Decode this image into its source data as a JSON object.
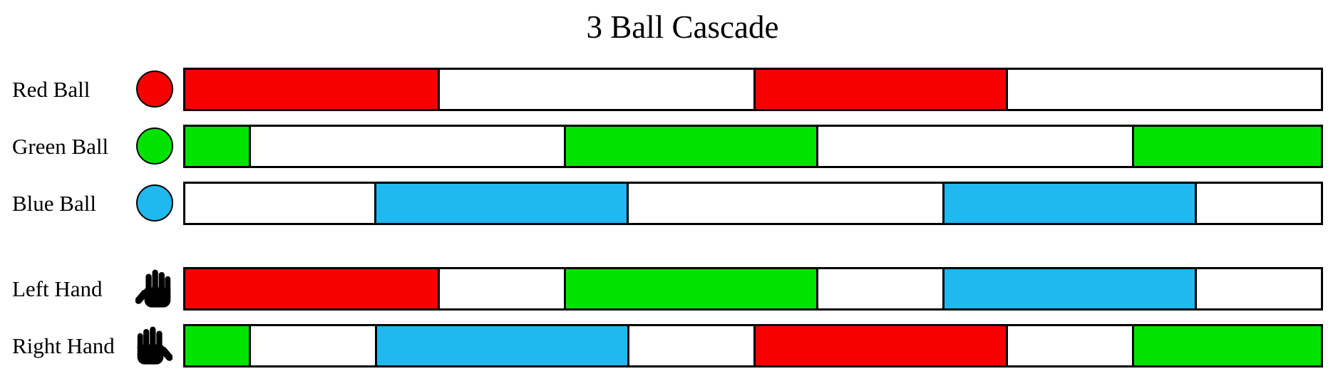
{
  "title": "3 Ball Cascade",
  "colors": {
    "red": "#f70000",
    "green": "#00e300",
    "blue": "#1fb9f0",
    "white": "#ffffff",
    "outline": "#000000"
  },
  "timeline": {
    "total_units": 36,
    "rows": [
      {
        "id": "red-ball",
        "label": "Red Ball",
        "icon": "red-ball-icon",
        "icon_type": "ball",
        "icon_color": "red",
        "segments": [
          {
            "color": "red",
            "units": 8
          },
          {
            "color": "white",
            "units": 10
          },
          {
            "color": "red",
            "units": 8
          },
          {
            "color": "white",
            "units": 10
          }
        ]
      },
      {
        "id": "green-ball",
        "label": "Green Ball",
        "icon": "green-ball-icon",
        "icon_type": "ball",
        "icon_color": "green",
        "segments": [
          {
            "color": "green",
            "units": 2
          },
          {
            "color": "white",
            "units": 10
          },
          {
            "color": "green",
            "units": 8
          },
          {
            "color": "white",
            "units": 10
          },
          {
            "color": "green",
            "units": 6
          }
        ]
      },
      {
        "id": "blue-ball",
        "label": "Blue Ball",
        "icon": "blue-ball-icon",
        "icon_type": "ball",
        "icon_color": "blue",
        "segments": [
          {
            "color": "white",
            "units": 6
          },
          {
            "color": "blue",
            "units": 8
          },
          {
            "color": "white",
            "units": 10
          },
          {
            "color": "blue",
            "units": 8
          },
          {
            "color": "white",
            "units": 4
          }
        ]
      },
      {
        "id": "left-hand",
        "label": "Left Hand",
        "icon": "left-hand-icon",
        "icon_type": "hand",
        "segments": [
          {
            "color": "red",
            "units": 8
          },
          {
            "color": "white",
            "units": 4
          },
          {
            "color": "green",
            "units": 8
          },
          {
            "color": "white",
            "units": 4
          },
          {
            "color": "blue",
            "units": 8
          },
          {
            "color": "white",
            "units": 4
          }
        ]
      },
      {
        "id": "right-hand",
        "label": "Right Hand",
        "icon": "right-hand-icon",
        "icon_type": "hand",
        "segments": [
          {
            "color": "green",
            "units": 2
          },
          {
            "color": "white",
            "units": 4
          },
          {
            "color": "blue",
            "units": 8
          },
          {
            "color": "white",
            "units": 4
          },
          {
            "color": "red",
            "units": 8
          },
          {
            "color": "white",
            "units": 4
          },
          {
            "color": "green",
            "units": 6
          }
        ]
      }
    ]
  }
}
